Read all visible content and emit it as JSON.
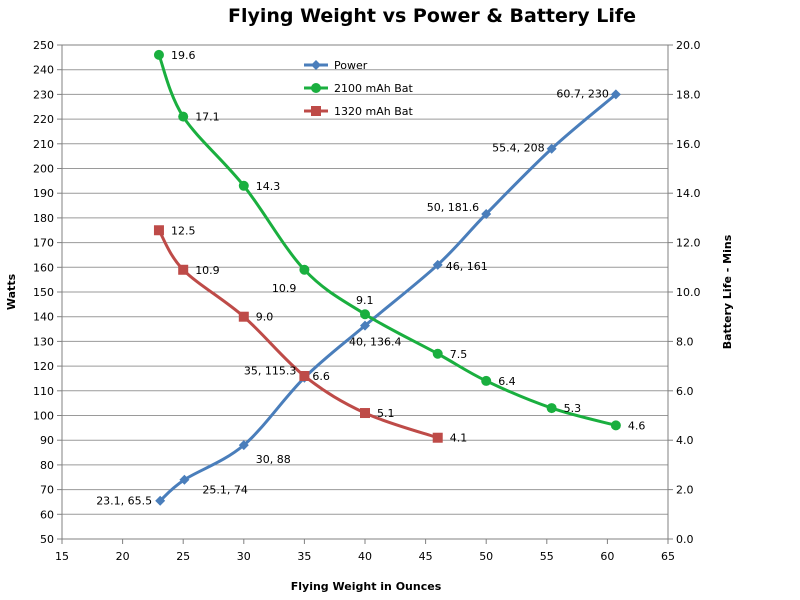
{
  "chart_data": {
    "type": "line",
    "title": "Flying Weight vs Power & Battery Life",
    "xlabel": "Flying Weight in Ounces",
    "ylabel": "Watts",
    "y2label": "Battery Life - Mins",
    "xlim": [
      15,
      65
    ],
    "ylim": [
      50,
      250
    ],
    "y2lim": [
      0,
      20
    ],
    "xticks": [
      "15",
      "20",
      "25",
      "30",
      "35",
      "40",
      "45",
      "50",
      "55",
      "60",
      "65"
    ],
    "yticks": [
      "50",
      "60",
      "70",
      "80",
      "90",
      "100",
      "110",
      "120",
      "130",
      "140",
      "150",
      "160",
      "170",
      "180",
      "190",
      "200",
      "210",
      "220",
      "230",
      "240",
      "250"
    ],
    "y2ticks": [
      "0.0",
      "2.0",
      "4.0",
      "6.0",
      "8.0",
      "10.0",
      "12.0",
      "14.0",
      "16.0",
      "18.0",
      "20.0"
    ],
    "grid": "horizontal",
    "legend_position": "top-center",
    "series": [
      {
        "name": "Power",
        "axis": "left",
        "color": "#4a7ebb",
        "marker": "diamond",
        "x": [
          23.1,
          25.1,
          30,
          35,
          40,
          46,
          50,
          55.4,
          60.7
        ],
        "y": [
          65.5,
          74,
          88,
          115.3,
          136.4,
          161,
          181.6,
          208,
          230
        ],
        "labels": [
          "23.1, 65.5",
          "25.1, 74",
          "30, 88",
          "35, 115.3",
          "40, 136.4",
          "46, 161",
          "50, 181.6",
          "55.4, 208",
          "60.7, 230"
        ]
      },
      {
        "name": "2100 mAh Bat",
        "axis": "right",
        "color": "#1aaf3f",
        "marker": "circle",
        "x": [
          23,
          25,
          30,
          35,
          40,
          46,
          50,
          55.4,
          60.7
        ],
        "y": [
          19.6,
          17.1,
          14.3,
          10.9,
          9.1,
          7.5,
          6.4,
          5.3,
          4.6
        ],
        "labels": [
          "19.6",
          "17.1",
          "14.3",
          "10.9",
          "9.1",
          "7.5",
          "6.4",
          "5.3",
          "4.6"
        ]
      },
      {
        "name": "1320 mAh Bat",
        "axis": "right",
        "color": "#be4b48",
        "marker": "square",
        "x": [
          23,
          25,
          30,
          35,
          40,
          46
        ],
        "y": [
          12.5,
          10.9,
          9.0,
          6.6,
          5.1,
          4.1
        ],
        "labels": [
          "12.5",
          "10.9",
          "9.0",
          "6.6",
          "5.1",
          "4.1"
        ]
      }
    ]
  }
}
